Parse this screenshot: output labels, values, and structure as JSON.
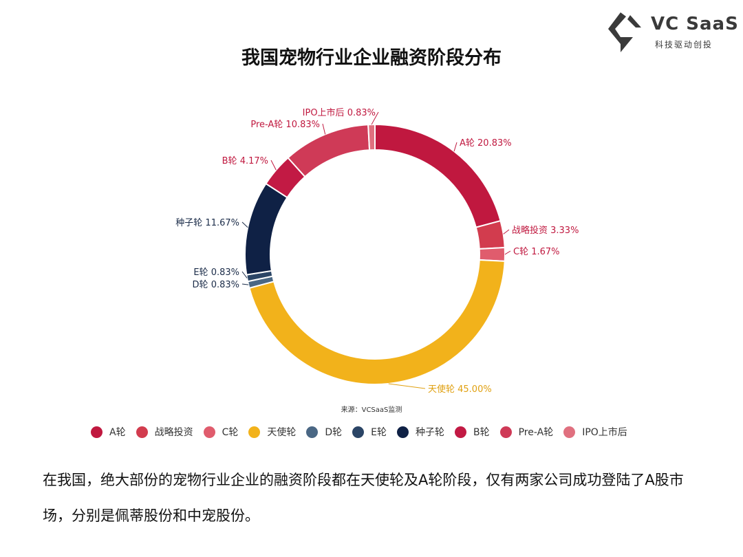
{
  "logo": {
    "text": "VC SaaS",
    "subtext": "科技驱动创投",
    "color": "#3a3a3a"
  },
  "source_note": "来源：VCSaaS监测",
  "paragraph": "在我国，绝大部份的宠物行业企业的融资阶段都在天使轮及A轮阶段，仅有两家公司成功登陆了A股市场，分别是佩蒂股份和中宠股份。",
  "chart_data": {
    "type": "pie",
    "subtype": "donut",
    "title": "我国宠物行业企业融资阶段分布",
    "legend_position": "bottom",
    "series": [
      {
        "name": "A轮",
        "value": 20.83,
        "label": "A轮 20.83%",
        "color": "#c0183f",
        "label_color": "#c0183f"
      },
      {
        "name": "战略投资",
        "value": 3.33,
        "label": "战略投资 3.33%",
        "color": "#d23c4e",
        "label_color": "#c0183f"
      },
      {
        "name": "C轮",
        "value": 1.67,
        "label": "C轮 1.67%",
        "color": "#e05c6d",
        "label_color": "#c0183f"
      },
      {
        "name": "天使轮",
        "value": 45.0,
        "label": "天使轮 45.00%",
        "color": "#f2b21b",
        "label_color": "#e0a010"
      },
      {
        "name": "D轮",
        "value": 0.83,
        "label": "D轮 0.83%",
        "color": "#4a6784",
        "label_color": "#1a2b48"
      },
      {
        "name": "E轮",
        "value": 0.83,
        "label": "E轮 0.83%",
        "color": "#2b4566",
        "label_color": "#1a2b48"
      },
      {
        "name": "种子轮",
        "value": 11.67,
        "label": "种子轮 11.67%",
        "color": "#0f2145",
        "label_color": "#1a2b48"
      },
      {
        "name": "B轮",
        "value": 4.17,
        "label": "B轮 4.17%",
        "color": "#c21a44",
        "label_color": "#c0183f"
      },
      {
        "name": "Pre-A轮",
        "value": 10.83,
        "label": "Pre-A轮 10.83%",
        "color": "#cf3a57",
        "label_color": "#c0183f"
      },
      {
        "name": "IPO上市后",
        "value": 0.83,
        "label": "IPO上市后 0.83%",
        "color": "#e0707f",
        "label_color": "#c0183f"
      }
    ]
  }
}
